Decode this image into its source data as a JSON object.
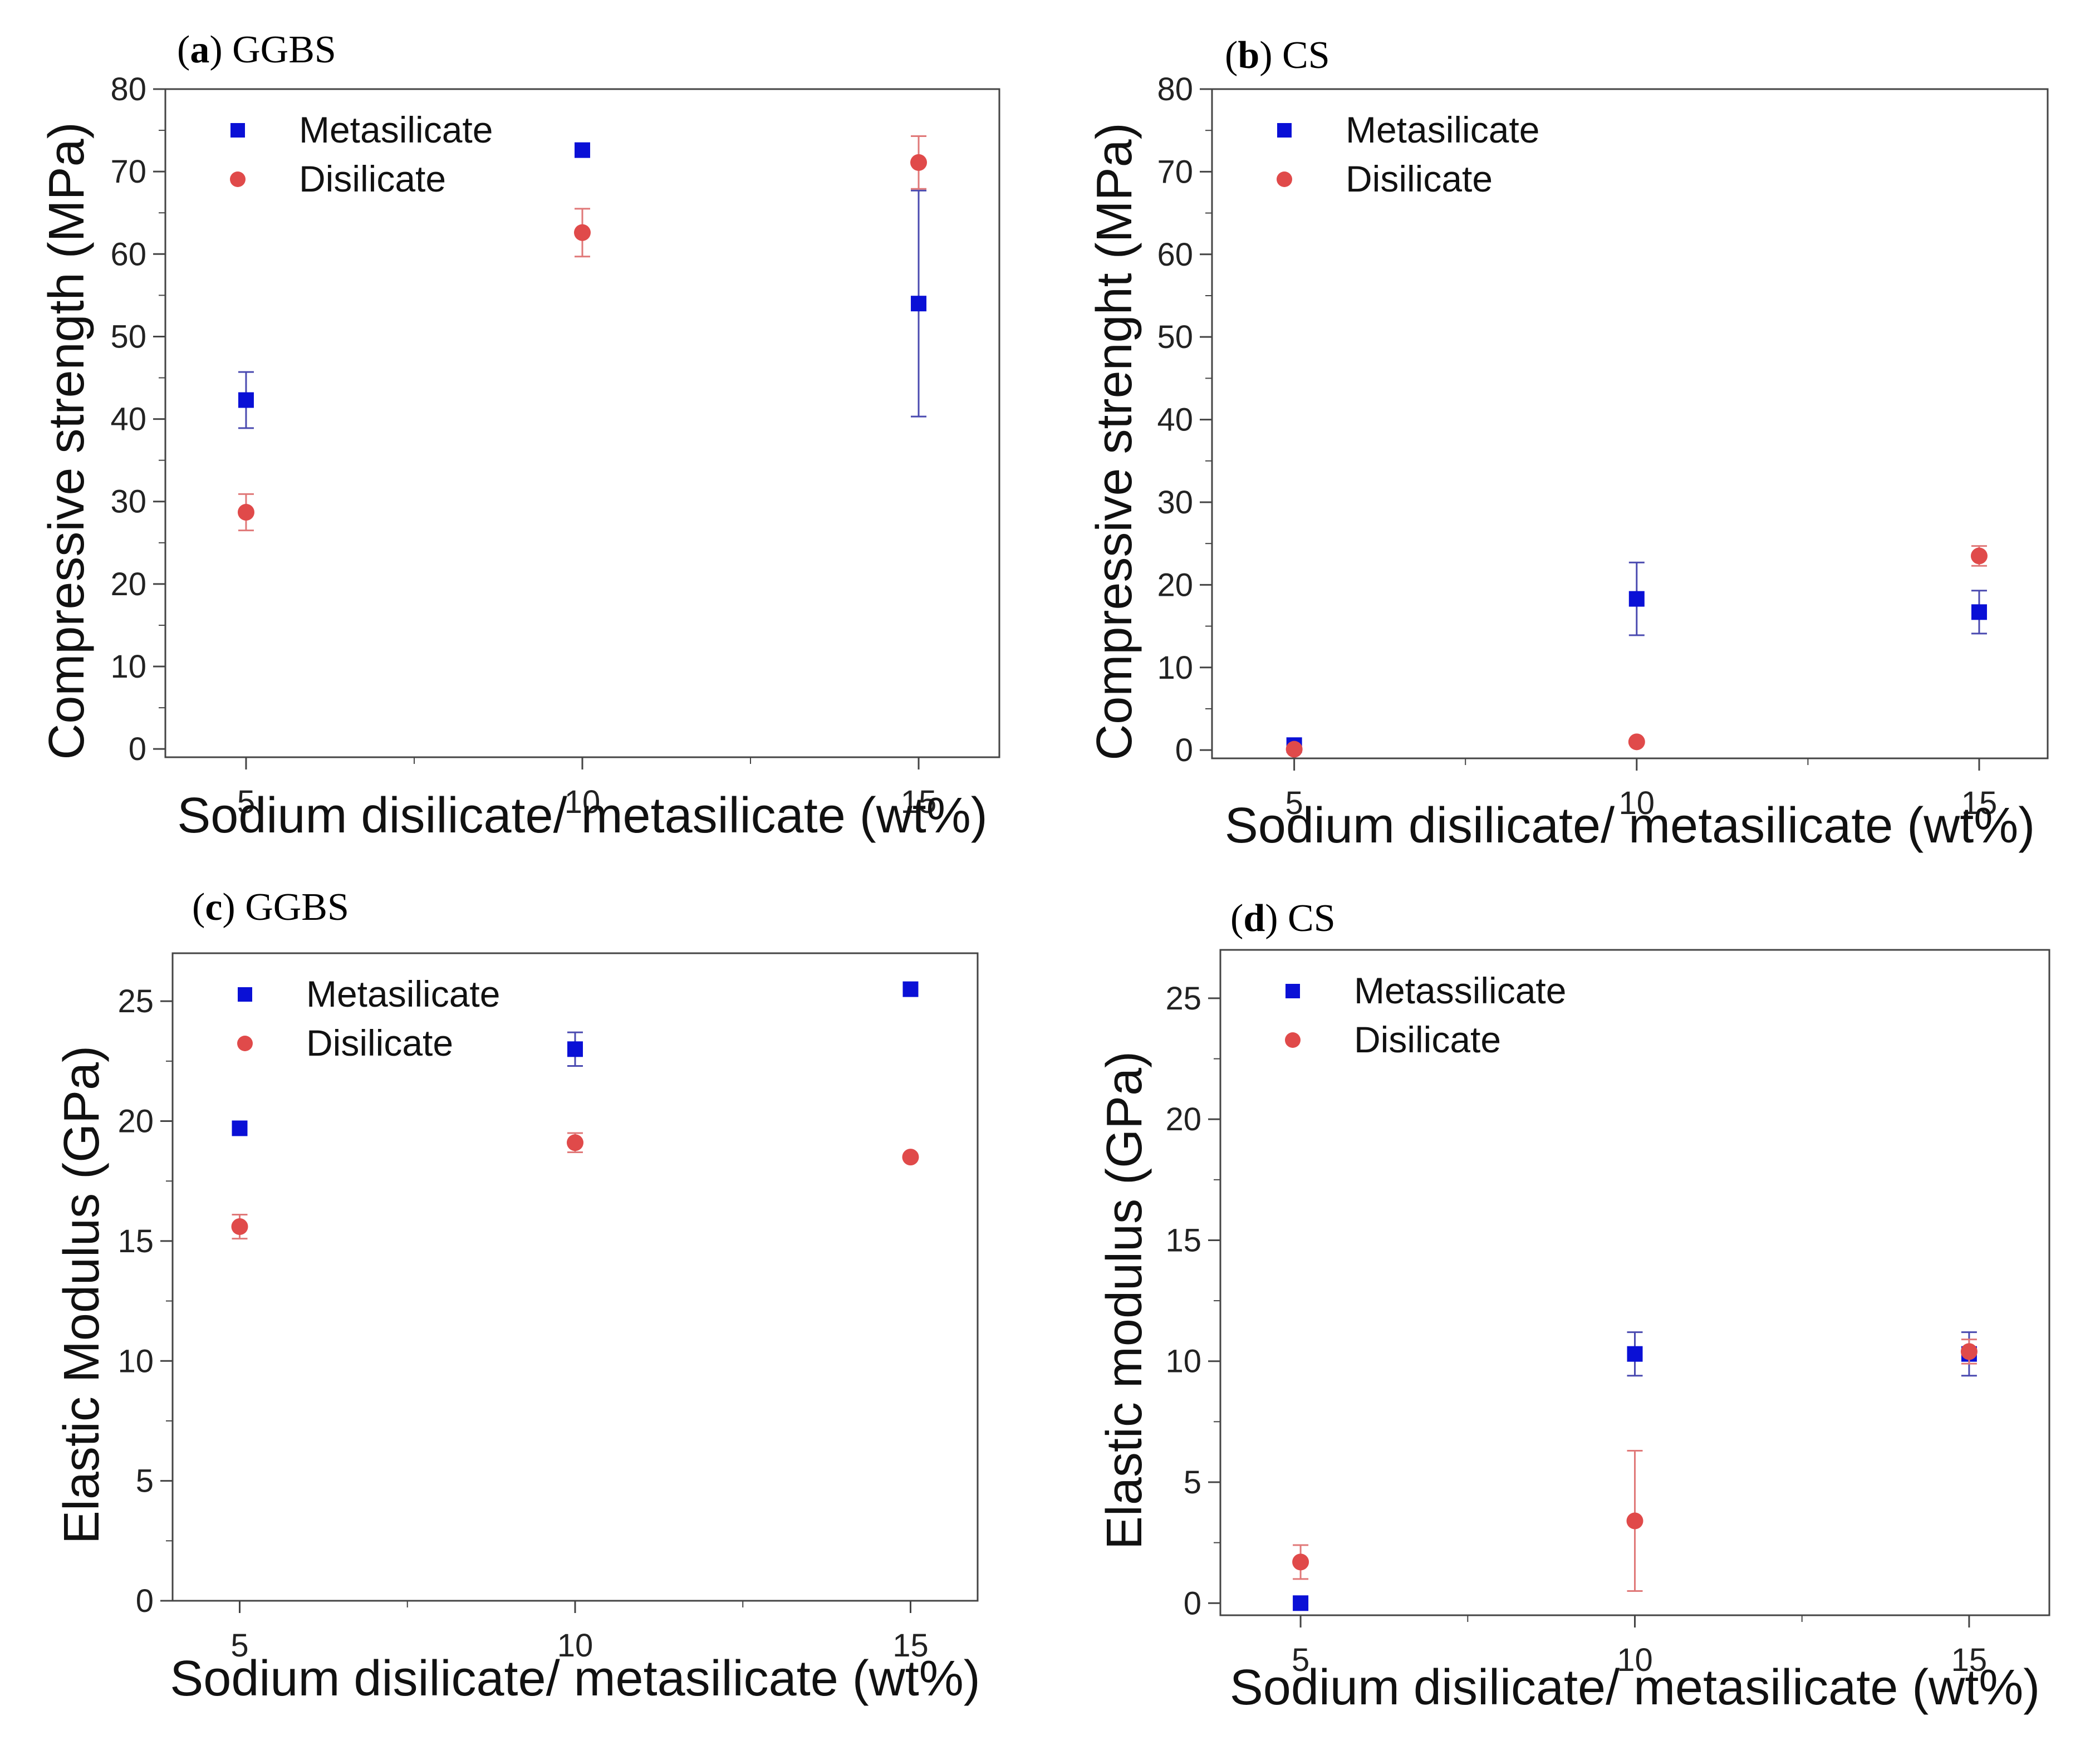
{
  "colors": {
    "metasilicate": "#0a10d6",
    "disilicate": "#e04a4a",
    "axis": "#444444",
    "text": "#111111"
  },
  "chart_data": [
    {
      "type": "scatter",
      "panel_letter": "a",
      "panel_name": "GGBS",
      "title": "(a) GGBS",
      "xlabel": "Sodium disilicate/ metasilicate (wt%)",
      "ylabel": "Compressive strength (MPa)",
      "xlim": [
        3.8,
        16.2
      ],
      "ylim": [
        -1,
        80
      ],
      "xticks": [
        5,
        10,
        15
      ],
      "yticks": [
        0,
        10,
        20,
        30,
        40,
        50,
        60,
        70,
        80
      ],
      "legend_position": "top-left",
      "series": [
        {
          "name": "Metasilicate",
          "marker": "square",
          "x": [
            5,
            10,
            15
          ],
          "y": [
            42.3,
            72.6,
            54.0
          ],
          "err": [
            3.4,
            0,
            13.7
          ]
        },
        {
          "name": "Disilicate",
          "marker": "circle",
          "x": [
            5,
            10,
            15
          ],
          "y": [
            28.7,
            62.6,
            71.1
          ],
          "err": [
            2.2,
            2.9,
            3.2
          ]
        }
      ]
    },
    {
      "type": "scatter",
      "panel_letter": "b",
      "panel_name": "CS",
      "title": "(b) CS",
      "xlabel": "Sodium disilicate/ metasilicate (wt%)",
      "ylabel": "Compressive strenght (MPa)",
      "xlim": [
        3.8,
        16.0
      ],
      "ylim": [
        -1,
        80
      ],
      "xticks": [
        5,
        10,
        15
      ],
      "yticks": [
        0,
        10,
        20,
        30,
        40,
        50,
        60,
        70,
        80
      ],
      "legend_position": "top-left",
      "series": [
        {
          "name": "Metasilicate",
          "marker": "square",
          "x": [
            5,
            10,
            15
          ],
          "y": [
            0.6,
            18.3,
            16.7
          ],
          "err": [
            0,
            4.4,
            2.6
          ]
        },
        {
          "name": "Disilicate",
          "marker": "circle",
          "x": [
            5,
            10,
            15
          ],
          "y": [
            0.1,
            1.0,
            23.5
          ],
          "err": [
            0,
            0,
            1.2
          ]
        }
      ]
    },
    {
      "type": "scatter",
      "panel_letter": "c",
      "panel_name": "GGBS",
      "title": "(c) GGBS",
      "xlabel": "Sodium disilicate/ metasilicate (wt%)",
      "ylabel": "Elastic Modulus (GPa)",
      "xlim": [
        4.0,
        16.0
      ],
      "ylim": [
        0,
        27
      ],
      "xticks": [
        5,
        10,
        15
      ],
      "yticks": [
        0,
        5,
        10,
        15,
        20,
        25
      ],
      "legend_position": "top-left",
      "series": [
        {
          "name": "Metasilicate",
          "marker": "square",
          "x": [
            5,
            10,
            15
          ],
          "y": [
            19.7,
            23.0,
            25.5
          ],
          "err": [
            0,
            0.7,
            0
          ]
        },
        {
          "name": "Disilicate",
          "marker": "circle",
          "x": [
            5,
            10,
            15
          ],
          "y": [
            15.6,
            19.1,
            18.5
          ],
          "err": [
            0.5,
            0.4,
            0
          ]
        }
      ]
    },
    {
      "type": "scatter",
      "panel_letter": "d",
      "panel_name": "CS",
      "title": "(d) CS",
      "xlabel": "Sodium disilicate/ metasilicate (wt%)",
      "ylabel": "Elastic modulus (GPa)",
      "xlim": [
        3.8,
        16.2
      ],
      "ylim": [
        -0.5,
        27
      ],
      "xticks": [
        5,
        10,
        15
      ],
      "yticks": [
        0,
        5,
        10,
        15,
        20,
        25
      ],
      "legend_position": "top-left",
      "series": [
        {
          "name": "Metassilicate",
          "marker": "square",
          "x": [
            5,
            10,
            15
          ],
          "y": [
            0.0,
            10.3,
            10.3
          ],
          "err": [
            0,
            0.9,
            0.9
          ]
        },
        {
          "name": "Disilicate",
          "marker": "circle",
          "x": [
            5,
            10,
            15
          ],
          "y": [
            1.7,
            3.4,
            10.4
          ],
          "err": [
            0.7,
            2.9,
            0.5
          ]
        }
      ]
    }
  ]
}
